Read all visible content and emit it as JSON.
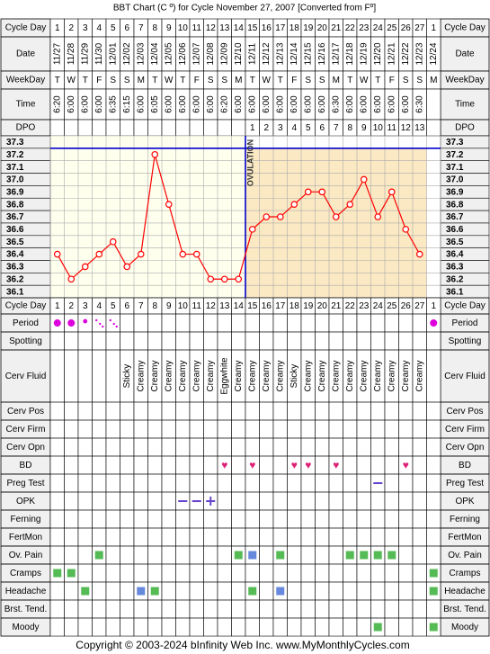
{
  "title": "BBT Chart (C º) for Cycle November 27, 2007  [Converted from Fº]",
  "footer": {
    "copyright": "Copyright © 2003-2024 bInfinity Web Inc.",
    "site": "www.MyMonthlyCycles.com"
  },
  "row_labels": {
    "cycle_day": "Cycle Day",
    "date": "Date",
    "weekday": "WeekDay",
    "time": "Time",
    "dpo": "DPO"
  },
  "ovulation_label": "OVULATION",
  "colors": {
    "grid": "#000000",
    "temp_line": "#ff0000",
    "point_fill": "#ffffff",
    "ovulation_line": "#0000cc",
    "pre_ovulation_bg": "#ffffee",
    "post_ovulation_bg": "#fbe9c4",
    "header_bg": "#f0f0f0",
    "period": "#dd00dd",
    "bd_heart": "#dd2277",
    "green_marker": "#55bb55",
    "blue_marker": "#6688dd",
    "opk_dash": "#6644cc"
  },
  "chart_data": {
    "type": "line",
    "title": "BBT Chart (C º) for Cycle November 27, 2007  [Converted from Fº]",
    "x": [
      "1",
      "2",
      "3",
      "4",
      "5",
      "6",
      "7",
      "8",
      "9",
      "10",
      "11",
      "12",
      "13",
      "14",
      "15",
      "16",
      "17",
      "18",
      "19",
      "20",
      "21",
      "22",
      "23",
      "24",
      "25",
      "26",
      "27",
      "1"
    ],
    "dates": [
      "11/27",
      "11/28",
      "11/29",
      "11/30",
      "12/01",
      "12/02",
      "12/03",
      "12/04",
      "12/05",
      "12/06",
      "12/07",
      "12/08",
      "12/09",
      "12/10",
      "12/11",
      "12/12",
      "12/13",
      "12/14",
      "12/15",
      "12/16",
      "12/17",
      "12/18",
      "12/19",
      "12/20",
      "12/21",
      "12/22",
      "12/23",
      "12/24"
    ],
    "weekdays": [
      "T",
      "W",
      "T",
      "F",
      "S",
      "S",
      "M",
      "T",
      "W",
      "T",
      "F",
      "S",
      "S",
      "M",
      "T",
      "W",
      "T",
      "F",
      "S",
      "S",
      "M",
      "T",
      "W",
      "T",
      "F",
      "S",
      "S",
      "M"
    ],
    "times": [
      "6:20",
      "6:00",
      "6:00",
      "6:00",
      "6:35",
      "6:15",
      "6:00",
      "6:05",
      "6:00",
      "6:00",
      "6:00",
      "6:00",
      "6:20",
      "6:00",
      "6:00",
      "6:00",
      "6:00",
      "6:00",
      "6:00",
      "6:00",
      "6:30",
      "6:00",
      "6:00",
      "6:00",
      "6:00",
      "6:00",
      "6:30",
      ""
    ],
    "dpo": [
      "",
      "",
      "",
      "",
      "",
      "",
      "",
      "",
      "",
      "",
      "",
      "",
      "",
      "",
      "1",
      "2",
      "3",
      "4",
      "5",
      "6",
      "7",
      "8",
      "9",
      "10",
      "11",
      "12",
      "13",
      ""
    ],
    "series": [
      {
        "values": [
          36.4,
          36.2,
          36.3,
          36.4,
          36.5,
          36.3,
          36.4,
          37.2,
          36.8,
          36.4,
          36.4,
          36.2,
          36.2,
          36.2,
          36.6,
          36.7,
          36.7,
          36.8,
          36.9,
          36.9,
          36.7,
          36.8,
          37.0,
          36.7,
          36.9,
          36.6,
          36.4,
          null
        ]
      }
    ],
    "y_ticks": [
      "37.3",
      "37.2",
      "37.1",
      "37.0",
      "36.9",
      "36.8",
      "36.7",
      "36.6",
      "36.5",
      "36.4",
      "36.3",
      "36.2",
      "36.1"
    ],
    "ylim": [
      36.1,
      37.3
    ],
    "ovulation_day": 14,
    "grid": true
  },
  "observations": [
    {
      "label": "Period",
      "type": "period",
      "cells": [
        "lg",
        "lg",
        "sm",
        "xs",
        "xs",
        "",
        "",
        "",
        "",
        "",
        "",
        "",
        "",
        "",
        "",
        "",
        "",
        "",
        "",
        "",
        "",
        "",
        "",
        "",
        "",
        "",
        "",
        "lg"
      ]
    },
    {
      "label": "Spotting",
      "type": "blank",
      "cells": []
    },
    {
      "label": "Cerv Fluid",
      "type": "text",
      "cells": [
        "",
        "",
        "",
        "",
        "",
        "Sticky",
        "Creamy",
        "Creamy",
        "Creamy",
        "Creamy",
        "Creamy",
        "Creamy",
        "Eggwhite",
        "Creamy",
        "Creamy",
        "Creamy",
        "Creamy",
        "Sticky",
        "Creamy",
        "Creamy",
        "Creamy",
        "Creamy",
        "Creamy",
        "Creamy",
        "Creamy",
        "Creamy",
        "Creamy",
        ""
      ]
    },
    {
      "label": "Cerv Pos",
      "type": "blank",
      "cells": []
    },
    {
      "label": "Cerv Firm",
      "type": "blank",
      "cells": []
    },
    {
      "label": "Cerv Opn",
      "type": "blank",
      "cells": []
    },
    {
      "label": "BD",
      "type": "heart",
      "cells": [
        0,
        0,
        0,
        0,
        0,
        0,
        0,
        0,
        0,
        0,
        0,
        0,
        1,
        0,
        1,
        0,
        0,
        1,
        1,
        0,
        1,
        0,
        0,
        0,
        0,
        1,
        0,
        0
      ]
    },
    {
      "label": "Preg Test",
      "type": "dash",
      "cells": [
        0,
        0,
        0,
        0,
        0,
        0,
        0,
        0,
        0,
        0,
        0,
        0,
        0,
        0,
        0,
        0,
        0,
        0,
        0,
        0,
        0,
        0,
        0,
        1,
        0,
        0,
        0,
        0
      ]
    },
    {
      "label": "OPK",
      "type": "opk",
      "cells": [
        "",
        "",
        "",
        "",
        "",
        "",
        "",
        "",
        "",
        "-",
        "-",
        "+",
        "",
        "",
        "",
        "",
        "",
        "",
        "",
        "",
        "",
        "",
        "",
        "",
        "",
        "",
        "",
        ""
      ]
    },
    {
      "label": "Ferning",
      "type": "blank",
      "cells": []
    },
    {
      "label": "FertMon",
      "type": "blank",
      "cells": []
    },
    {
      "label": "Ov. Pain",
      "type": "square",
      "cells": [
        "",
        "",
        "",
        "g",
        "",
        "",
        "",
        "",
        "",
        "",
        "",
        "",
        "",
        "g",
        "b",
        "",
        "g",
        "",
        "",
        "",
        "",
        "g",
        "g",
        "g",
        "g",
        "",
        "",
        ""
      ]
    },
    {
      "label": "Cramps",
      "type": "square",
      "cells": [
        "g",
        "g",
        "",
        "",
        "",
        "",
        "",
        "",
        "",
        "",
        "",
        "",
        "",
        "",
        "",
        "",
        "",
        "",
        "",
        "",
        "",
        "",
        "",
        "",
        "",
        "",
        "",
        "g"
      ]
    },
    {
      "label": "Headache",
      "type": "square",
      "cells": [
        "",
        "",
        "g",
        "",
        "",
        "",
        "b",
        "g",
        "",
        "",
        "",
        "",
        "",
        "",
        "g",
        "",
        "b",
        "",
        "",
        "",
        "",
        "",
        "",
        "",
        "",
        "",
        "",
        "g"
      ]
    },
    {
      "label": "Brst. Tend.",
      "type": "blank",
      "cells": []
    },
    {
      "label": "Moody",
      "type": "square",
      "cells": [
        "",
        "",
        "",
        "",
        "",
        "",
        "",
        "",
        "",
        "",
        "",
        "",
        "",
        "",
        "",
        "",
        "",
        "",
        "",
        "",
        "",
        "",
        "",
        "g",
        "",
        "",
        "",
        "g"
      ]
    }
  ]
}
